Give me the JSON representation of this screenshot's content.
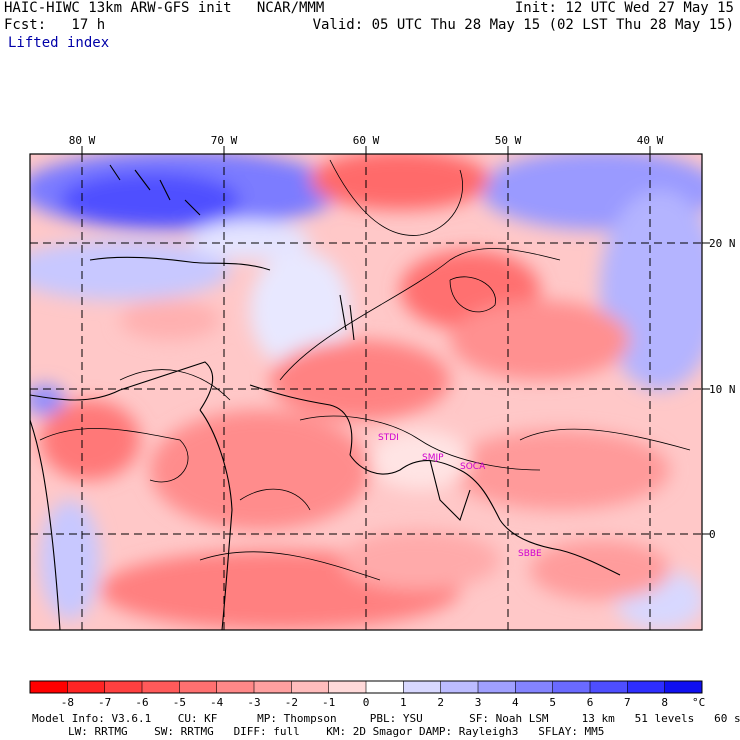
{
  "header": {
    "model_line": "HAIC-HIWC 13km ARW-GFS init   NCAR/MMM",
    "fcst_line": "Fcst:   17 h",
    "field": "Lifted index",
    "init_line": "Init: 12 UTC Wed 27 May 15",
    "valid_line": "Valid: 05 UTC Thu 28 May 15 (02 LST Thu 28 May 15)"
  },
  "map": {
    "lon_labels": [
      "80 W",
      "70 W",
      "60 W",
      "50 W",
      "40 W"
    ],
    "lat_labels": [
      "20 N",
      "10 N",
      "0"
    ],
    "stations": [
      "STDI",
      "SMJP",
      "SOCA",
      "SBBE"
    ]
  },
  "colorbar": {
    "ticks": [
      "-8",
      "-7",
      "-6",
      "-5",
      "-4",
      "-3",
      "-2",
      "-1",
      "0",
      "1",
      "2",
      "3",
      "4",
      "5",
      "6",
      "7",
      "8"
    ],
    "unit": "°C",
    "colors": [
      "#ff0000",
      "#ff2424",
      "#ff4040",
      "#ff5a5a",
      "#ff7070",
      "#ff8888",
      "#ffa0a0",
      "#ffbcbc",
      "#ffdada",
      "#ffffff",
      "#d8d8ff",
      "#bcbcff",
      "#a0a0ff",
      "#8484ff",
      "#6a6aff",
      "#4e4eff",
      "#2e2eff",
      "#1010f0"
    ]
  },
  "footer": {
    "line1": "Model Info: V3.6.1    CU: KF      MP: Thompson     PBL: YSU       SF: Noah LSM     13 km   51 levels   60 sec",
    "line2": "LW: RRTMG    SW: RRTMG   DIFF: full    KM: 2D Smagor DAMP: Rayleigh3   SFLAY: MM5"
  }
}
